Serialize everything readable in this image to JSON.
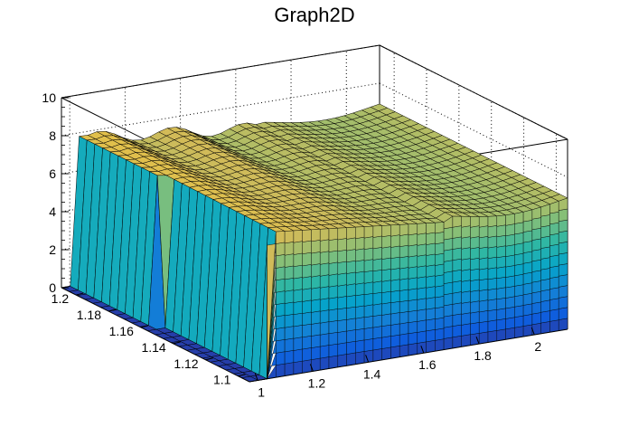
{
  "chart_data": {
    "type": "surface",
    "title": "Graph2D",
    "xlabel": "",
    "ylabel": "",
    "zlabel": "",
    "x_ticks": [
      "1",
      "1.2",
      "1.4",
      "1.6",
      "1.8",
      "2"
    ],
    "y_ticks": [
      "1.1",
      "1.12",
      "1.14",
      "1.16",
      "1.18",
      "1.2"
    ],
    "z_ticks": [
      "0",
      "2",
      "4",
      "6",
      "8",
      "10"
    ],
    "xlim": [
      0.97,
      2.12
    ],
    "ylim": [
      1.093,
      1.209
    ],
    "zlim": [
      0,
      10
    ],
    "grid": true,
    "surface": {
      "nx": 36,
      "ny": 24,
      "regions": [
        {
          "x_range": [
            1.02,
            1.06
          ],
          "y_range": [
            1.16,
            1.209
          ],
          "z": 7.7
        },
        {
          "x_range": [
            1.06,
            1.68
          ],
          "y_range": [
            1.093,
            1.209
          ],
          "z": 6.5
        },
        {
          "x_range": [
            1.68,
            2.12
          ],
          "y_range": [
            1.093,
            1.209
          ],
          "z": 6.2
        },
        {
          "x_range": [
            0.97,
            1.02
          ],
          "y_range": [
            1.093,
            1.209
          ],
          "z": 0
        }
      ],
      "low_plateau": 0,
      "high_plateau_range": [
        5.3,
        8.1
      ]
    },
    "colormap": [
      "#352a87",
      "#0f5cdd",
      "#1481d6",
      "#06a4ca",
      "#2eb7a4",
      "#87bf77",
      "#d1bb59",
      "#fec832",
      "#f9fb0e"
    ]
  }
}
